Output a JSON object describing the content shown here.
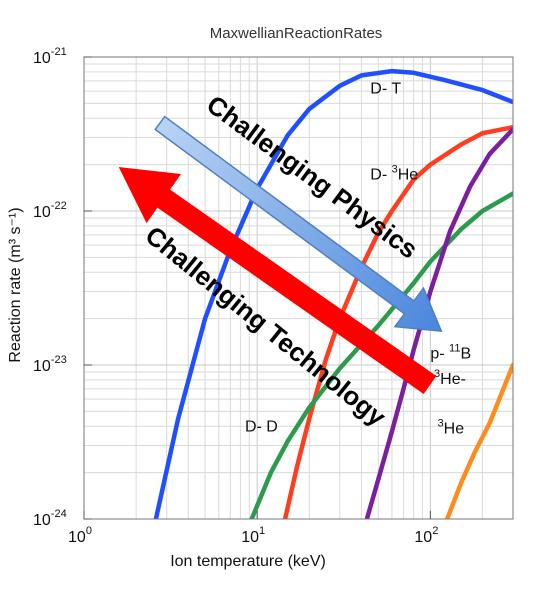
{
  "chart_data": {
    "type": "line",
    "title": "MaxwellianReactionRates",
    "xlabel": "Ion temperature (keV)",
    "ylabel": "Reaction rate (m³ s⁻¹)",
    "xscale": "log",
    "yscale": "log",
    "xlim": [
      1,
      300
    ],
    "ylim": [
      1e-24,
      1e-21
    ],
    "grid": true,
    "x_ticks": [
      {
        "base": "10",
        "exp": "0",
        "value": 1
      },
      {
        "base": "10",
        "exp": "1",
        "value": 10
      },
      {
        "base": "10",
        "exp": "2",
        "value": 100
      }
    ],
    "y_ticks": [
      {
        "base": "10",
        "exp": "-24",
        "value": 1e-24
      },
      {
        "base": "10",
        "exp": "-23",
        "value": 1e-23
      },
      {
        "base": "10",
        "exp": "-22",
        "value": 1e-22
      },
      {
        "base": "10",
        "exp": "-21",
        "value": 1e-21
      }
    ],
    "series": [
      {
        "name": "D- T",
        "color": "#1f4fff",
        "points": [
          [
            2.6,
            1e-24
          ],
          [
            3.5,
            4.5e-24
          ],
          [
            5,
            2e-23
          ],
          [
            7,
            5.6e-23
          ],
          [
            10,
            1.4e-22
          ],
          [
            15,
            3.1e-22
          ],
          [
            20,
            4.6e-22
          ],
          [
            30,
            6.5e-22
          ],
          [
            40,
            7.6e-22
          ],
          [
            60,
            8.1e-22
          ],
          [
            80,
            7.9e-22
          ],
          [
            120,
            7.1e-22
          ],
          [
            200,
            6.1e-22
          ],
          [
            300,
            5.1e-22
          ]
        ]
      },
      {
        "name": "D-³He",
        "color": "#ff3d1f",
        "points": [
          [
            14.5,
            1e-24
          ],
          [
            17,
            2.2e-24
          ],
          [
            20,
            4.5e-24
          ],
          [
            25,
            1.1e-23
          ],
          [
            30,
            2e-23
          ],
          [
            40,
            4.3e-23
          ],
          [
            50,
            7.2e-23
          ],
          [
            60,
            1e-22
          ],
          [
            80,
            1.6e-22
          ],
          [
            100,
            2e-22
          ],
          [
            150,
            2.7e-22
          ],
          [
            200,
            3.2e-22
          ],
          [
            300,
            3.5e-22
          ]
        ]
      },
      {
        "name": "D- D",
        "color": "#2e9a4e",
        "points": [
          [
            9.3,
            1e-24
          ],
          [
            12,
            2e-24
          ],
          [
            15,
            3.2e-24
          ],
          [
            20,
            5.3e-24
          ],
          [
            30,
            9.5e-24
          ],
          [
            50,
            1.8e-23
          ],
          [
            80,
            3.4e-23
          ],
          [
            100,
            4.7e-23
          ],
          [
            150,
            7.6e-23
          ],
          [
            200,
            1e-22
          ],
          [
            300,
            1.3e-22
          ]
        ]
      },
      {
        "name": "p-¹¹B",
        "color": "#7a1f9e",
        "points": [
          [
            43,
            1e-24
          ],
          [
            50,
            1.8e-24
          ],
          [
            60,
            3.7e-24
          ],
          [
            70,
            7e-24
          ],
          [
            80,
            1.25e-23
          ],
          [
            100,
            3e-23
          ],
          [
            130,
            7.4e-23
          ],
          [
            170,
            1.45e-22
          ],
          [
            220,
            2.35e-22
          ],
          [
            300,
            3.4e-22
          ]
        ]
      },
      {
        "name": "³He-³He",
        "color": "#ff8c1a",
        "points": [
          [
            125,
            1e-24
          ],
          [
            150,
            1.7e-24
          ],
          [
            180,
            2.7e-24
          ],
          [
            220,
            4.2e-24
          ],
          [
            260,
            6.7e-24
          ],
          [
            300,
            1e-23
          ]
        ]
      }
    ],
    "curve_labels": [
      {
        "base": "D- T",
        "sup": "",
        "x": 45,
        "y": 5.8e-22
      },
      {
        "base": "D- ",
        "sup": "3",
        "tail": "He",
        "x": 45,
        "y": 1.6e-22
      },
      {
        "base": "p- ",
        "sup": "11",
        "tail": "B",
        "x": 100,
        "y": 1.1e-23
      },
      {
        "base": "",
        "sup": "3",
        "tail": "He-",
        "x": 105,
        "y": 7.5e-24
      },
      {
        "base": "D- D",
        "sup": "",
        "x": 8.5,
        "y": 3.7e-24
      },
      {
        "base": "",
        "sup": "3",
        "tail": "He",
        "x": 110,
        "y": 3.6e-24
      }
    ],
    "annotations": [
      {
        "text": "Challenging Physics",
        "color": "#7fb0ea",
        "direction": "low T, high rate → high T, low rate"
      },
      {
        "text": "Challenging Technology",
        "color": "#ff0000",
        "direction": "high T, low rate → low T, high rate"
      }
    ]
  }
}
